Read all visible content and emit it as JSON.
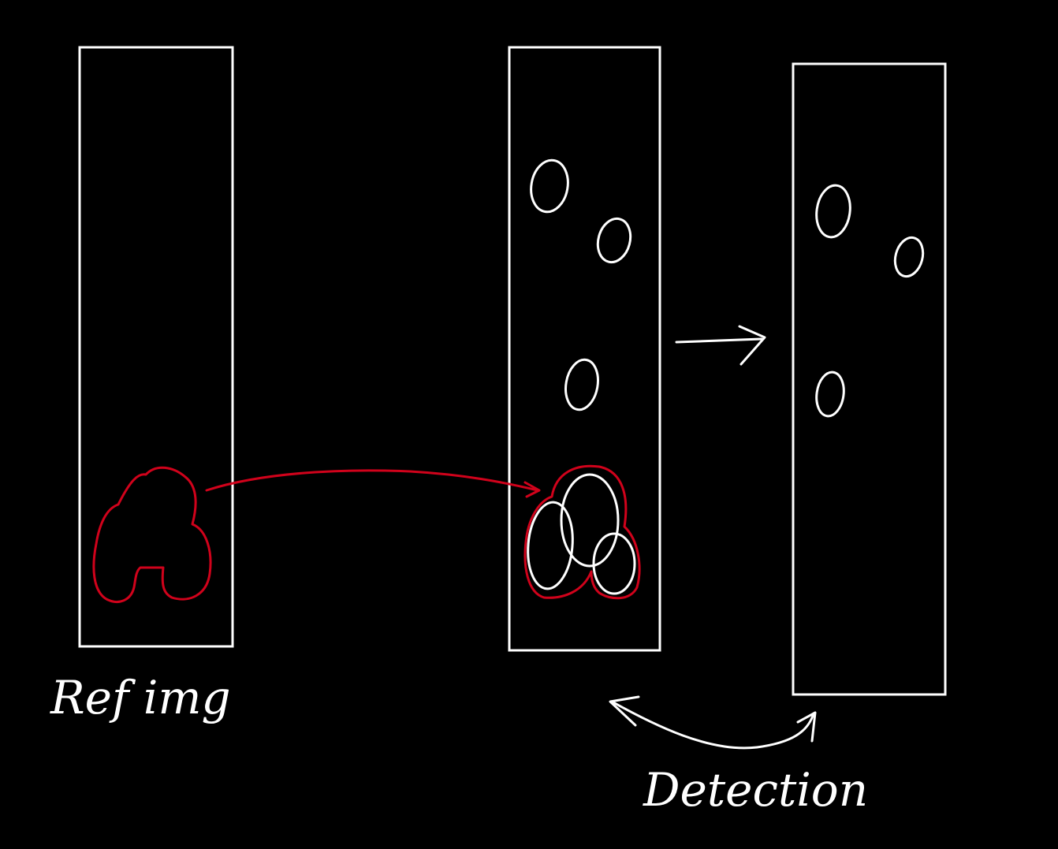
{
  "colors": {
    "background": "#000000",
    "stroke": "#ffffff",
    "highlight": "#d0021b"
  },
  "labels": {
    "reference": "Ref img",
    "detection": "Detection"
  },
  "panels": [
    {
      "id": "reference-image"
    },
    {
      "id": "query-image"
    },
    {
      "id": "detection-result"
    }
  ]
}
